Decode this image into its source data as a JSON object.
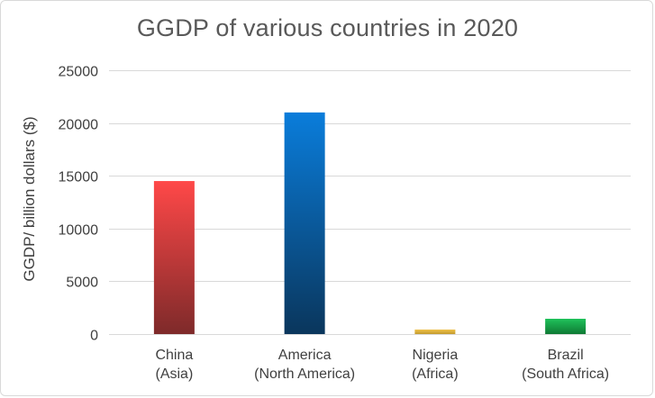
{
  "chart_data": {
    "type": "bar",
    "title": "GGDP of various countries in 2020",
    "xlabel": "",
    "ylabel": "GGDP/ billion dollars ($)",
    "ylim": [
      0,
      25000
    ],
    "yticks": [
      0,
      5000,
      10000,
      15000,
      20000,
      25000
    ],
    "grid": true,
    "legend": "none",
    "categories": [
      [
        "China",
        "(Asia)"
      ],
      [
        "America",
        "(North America)"
      ],
      [
        "Nigeria",
        "(Africa)"
      ],
      [
        "Brazil",
        "(South Africa)"
      ]
    ],
    "values": [
      14500,
      21000,
      430,
      1450
    ],
    "colors": [
      {
        "top": "#ff4848",
        "bottom": "#7e2a2a"
      },
      {
        "top": "#0a7ddb",
        "bottom": "#0a365c"
      },
      {
        "top": "#f0c24b",
        "bottom": "#c39a2e"
      },
      {
        "top": "#1fc25a",
        "bottom": "#0f7a34"
      }
    ],
    "gridline_color": "#d9d9d9",
    "text_color": "#404040",
    "title_color": "#595959"
  }
}
